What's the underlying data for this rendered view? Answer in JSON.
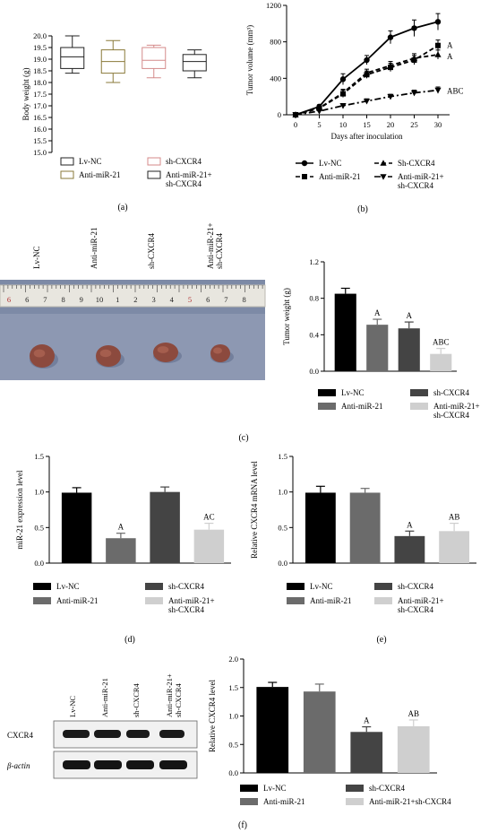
{
  "panels": {
    "a": "(a)",
    "b": "(b)",
    "c": "(c)",
    "d": "(d)",
    "e": "(e)",
    "f": "(f)"
  },
  "colors": {
    "lv_nc": "#000000",
    "anti_mir21": "#6b6b6b",
    "sh_cxcr4": "#444444",
    "combo": "#cfcfcf",
    "box_lvnc": "#222222",
    "box_anti": "#8a7a3a",
    "box_sh": "#d48a8a",
    "box_combo": "#222222"
  },
  "photo": {
    "labels": [
      "Lv-NC",
      "Anti-miR-21",
      "sh-CXCR4",
      "Anti-miR-21+\nsh-CXCR4"
    ],
    "ruler_numbers": [
      "6",
      "6",
      "7",
      "8",
      "9",
      "10",
      "1",
      "2",
      "3",
      "4",
      "5",
      "6",
      "7",
      "8"
    ]
  },
  "blot": {
    "lane_labels": [
      "Lv-NC",
      "Anti-miR-21",
      "sh-CXCR4",
      "Anti-miR-21+\nsh-CXCR4"
    ],
    "row_labels": [
      "CXCR4",
      "β-actin"
    ]
  },
  "chart_data": [
    {
      "id": "a",
      "type": "box",
      "ylabel": "Body weight (g)",
      "ylim": [
        15,
        20
      ],
      "yticks": [
        15,
        15.5,
        16,
        16.5,
        17,
        17.5,
        18,
        18.5,
        19,
        19.5,
        20
      ],
      "series": [
        {
          "name": "Lv-NC",
          "min": 18.4,
          "q1": 18.6,
          "median": 19.1,
          "q3": 19.5,
          "max": 20.0
        },
        {
          "name": "Anti-miR-21",
          "min": 18.0,
          "q1": 18.4,
          "median": 18.9,
          "q3": 19.4,
          "max": 19.8
        },
        {
          "name": "sh-CXCR4",
          "min": 18.2,
          "q1": 18.6,
          "median": 18.95,
          "q3": 19.5,
          "max": 19.6
        },
        {
          "name": "Anti-miR-21+\nsh-CXCR4",
          "min": 18.2,
          "q1": 18.5,
          "median": 18.9,
          "q3": 19.2,
          "max": 19.4
        }
      ]
    },
    {
      "id": "b",
      "type": "line",
      "ylabel": "Tumor volume (mm³)",
      "xlabel": "Days after inoculation",
      "x": [
        0,
        5,
        10,
        15,
        20,
        25,
        30
      ],
      "ylim": [
        0,
        1200
      ],
      "yticks": [
        0,
        400,
        800,
        1200
      ],
      "series": [
        {
          "name": "Lv-NC",
          "marker": "circle",
          "values": [
            0,
            90,
            390,
            600,
            850,
            950,
            1020
          ],
          "errors": [
            10,
            20,
            60,
            50,
            70,
            90,
            90
          ]
        },
        {
          "name": "Sh-CXCR4",
          "marker": "triangle",
          "values": [
            0,
            75,
            240,
            460,
            540,
            620,
            660
          ],
          "errors": [
            10,
            15,
            40,
            40,
            45,
            50,
            50
          ]
        },
        {
          "name": "Anti-miR-21",
          "marker": "square",
          "values": [
            0,
            70,
            230,
            440,
            520,
            600,
            760
          ],
          "errors": [
            10,
            15,
            40,
            40,
            45,
            50,
            60
          ]
        },
        {
          "name": "Anti-miR-21+\nsh-CXCR4",
          "marker": "tri-down",
          "values": [
            0,
            40,
            100,
            150,
            200,
            240,
            270
          ],
          "errors": [
            8,
            10,
            20,
            25,
            25,
            30,
            35
          ]
        }
      ],
      "annotations": [
        {
          "text": "A",
          "x": 30,
          "y": 770
        },
        {
          "text": "A",
          "x": 30,
          "y": 650
        },
        {
          "text": "ABC",
          "x": 30,
          "y": 270
        }
      ]
    },
    {
      "id": "c",
      "type": "bar",
      "ylabel": "Tumor weight (g)",
      "ylim": [
        0,
        1.2
      ],
      "yticks": [
        0.0,
        0.4,
        0.8,
        1.2
      ],
      "categories": [
        "Lv-NC",
        "Anti-miR-21",
        "sh-CXCR4",
        "Anti-miR-21+\nsh-CXCR4"
      ],
      "values": [
        0.85,
        0.51,
        0.47,
        0.19
      ],
      "errors": [
        0.06,
        0.06,
        0.07,
        0.06
      ],
      "labels": [
        "",
        "A",
        "A",
        "ABC"
      ]
    },
    {
      "id": "d",
      "type": "bar",
      "ylabel": "miR-21 expression level",
      "ylim": [
        0,
        1.5
      ],
      "yticks": [
        0.0,
        0.5,
        1.0,
        1.5
      ],
      "categories": [
        "Lv-NC",
        "Anti-miR-21",
        "sh-CXCR4",
        "Anti-miR-21+\nsh-CXCR4"
      ],
      "values": [
        0.99,
        0.35,
        1.0,
        0.47
      ],
      "errors": [
        0.07,
        0.07,
        0.07,
        0.09
      ],
      "labels": [
        "",
        "A",
        "",
        "AC"
      ]
    },
    {
      "id": "e",
      "type": "bar",
      "ylabel": "Relative CXCR4 mRNA level",
      "ylim": [
        0,
        1.5
      ],
      "yticks": [
        0.0,
        0.5,
        1.0,
        1.5
      ],
      "categories": [
        "Lv-NC",
        "Anti-miR-21",
        "sh-CXCR4",
        "Anti-miR-21+\nsh-CXCR4"
      ],
      "values": [
        0.99,
        0.99,
        0.38,
        0.45
      ],
      "errors": [
        0.09,
        0.06,
        0.07,
        0.11
      ],
      "labels": [
        "",
        "",
        "A",
        "AB"
      ]
    },
    {
      "id": "f",
      "type": "bar",
      "ylabel": "Relative CXCR4 level",
      "ylim": [
        0,
        2.0
      ],
      "yticks": [
        0.0,
        0.5,
        1.0,
        1.5,
        2.0
      ],
      "categories": [
        "Lv-NC",
        "Anti-miR-21",
        "sh-CXCR4",
        "Anti-miR-21+sh-CXCR4"
      ],
      "values": [
        1.51,
        1.43,
        0.72,
        0.82
      ],
      "errors": [
        0.08,
        0.13,
        0.09,
        0.11
      ],
      "labels": [
        "",
        "",
        "A",
        "AB"
      ]
    }
  ]
}
